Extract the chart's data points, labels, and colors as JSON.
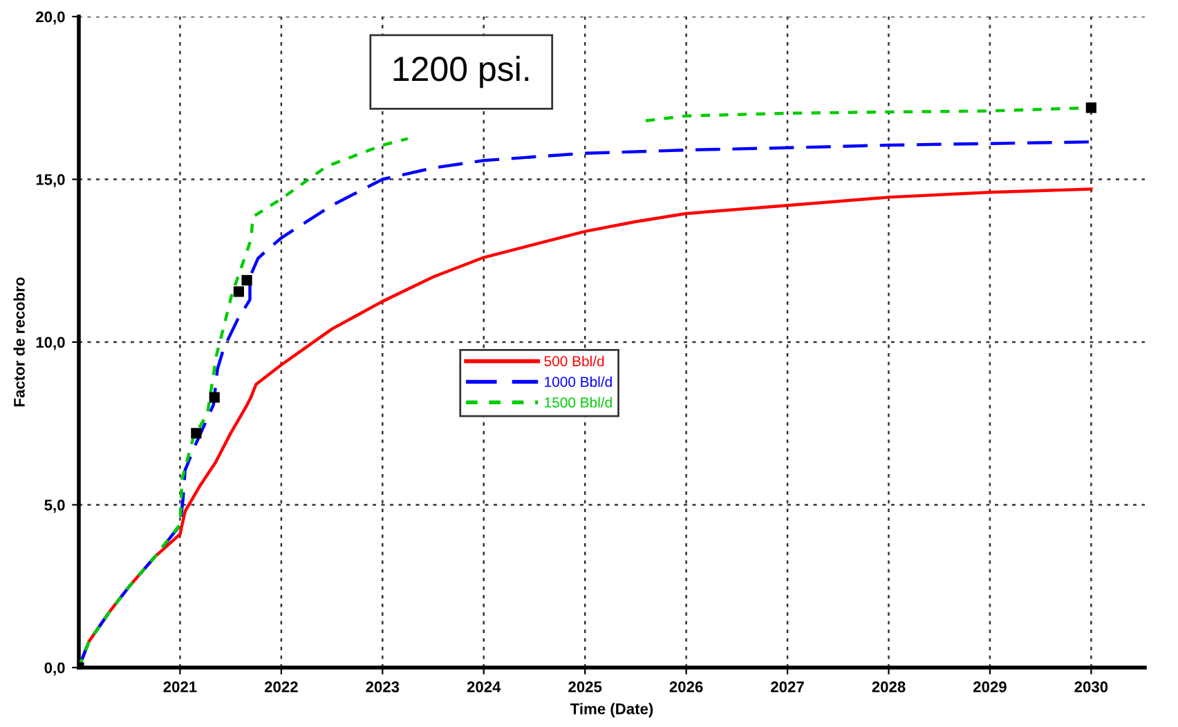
{
  "chart_data": {
    "type": "line",
    "xlabel": "Time (Date)",
    "ylabel": "Factor de recobro",
    "annotations": [
      "1200 psi."
    ],
    "xlim": [
      2020.0,
      2030.53
    ],
    "xticks": [
      2021,
      2022,
      2023,
      2024,
      2025,
      2026,
      2027,
      2028,
      2029,
      2030
    ],
    "ylim": [
      0,
      20
    ],
    "yticks": [
      {
        "value": 0,
        "label": "0,0"
      },
      {
        "value": 5,
        "label": "5,0"
      },
      {
        "value": 10,
        "label": "10,0"
      },
      {
        "value": 15,
        "label": "15,0"
      },
      {
        "value": 20,
        "label": "20,0"
      }
    ],
    "grid": true,
    "legend": "center",
    "marker": "none",
    "series": [
      {
        "name": "500 Bbl/d",
        "color": "#ff0000",
        "line_style": "solid",
        "x": [
          2020.0,
          2020.1,
          2020.3,
          2020.5,
          2020.75,
          2021.0,
          2021.05,
          2021.2,
          2021.35,
          2021.5,
          2021.65,
          2021.7,
          2021.75,
          2022.0,
          2022.5,
          2023.0,
          2023.5,
          2024.0,
          2024.5,
          2025.0,
          2025.5,
          2026.0,
          2027.0,
          2028.0,
          2029.0,
          2030.0
        ],
        "values": [
          0,
          0.8,
          1.7,
          2.5,
          3.4,
          4.1,
          4.8,
          5.6,
          6.3,
          7.2,
          8.0,
          8.3,
          8.7,
          9.3,
          10.4,
          11.25,
          12.0,
          12.6,
          13.0,
          13.4,
          13.7,
          13.95,
          14.2,
          14.45,
          14.6,
          14.7
        ]
      },
      {
        "name": "1000 Bbl/d",
        "color": "#0000ff",
        "line_style": "dashed",
        "x": [
          2020.0,
          2020.1,
          2020.3,
          2020.5,
          2020.75,
          2021.0,
          2021.03,
          2021.05,
          2021.16,
          2021.33,
          2021.37,
          2021.43,
          2021.57,
          2021.69,
          2021.69,
          2021.77,
          2021.85,
          2022.0,
          2022.5,
          2023.0,
          2023.5,
          2024.0,
          2025.0,
          2026.0,
          2027.0,
          2028.0,
          2029.0,
          2030.0
        ],
        "values": [
          0,
          0.8,
          1.7,
          2.5,
          3.4,
          4.37,
          5.2,
          6.07,
          6.9,
          8.07,
          9.17,
          9.8,
          10.7,
          11.3,
          12.0,
          12.57,
          12.8,
          13.2,
          14.2,
          15.0,
          15.35,
          15.58,
          15.8,
          15.9,
          15.97,
          16.05,
          16.1,
          16.15
        ]
      },
      {
        "name": "1500 Bbl/d",
        "color": "#00cc00",
        "line_style": "dotted",
        "x": [
          2020.0,
          2020.1,
          2020.3,
          2020.5,
          2020.75,
          2021.0,
          2021.02,
          2021.13,
          2021.27,
          2021.36,
          2021.43,
          2021.51,
          2021.67,
          2021.7,
          2021.72,
          2022.0,
          2022.45,
          2023.0,
          2023.25,
          2023.5,
          2025.0,
          2025.6,
          2026.0,
          2027.0,
          2028.0,
          2029.0,
          2030.0
        ],
        "values": [
          0,
          0.8,
          1.7,
          2.5,
          3.4,
          4.4,
          5.8,
          7.05,
          7.8,
          9.6,
          10.45,
          11.45,
          12.87,
          13.15,
          13.85,
          14.4,
          15.4,
          16.05,
          16.25,
          null,
          null,
          16.8,
          16.95,
          17.03,
          17.07,
          17.1,
          17.2
        ]
      },
      {
        "type": "scatter",
        "color": "#000000",
        "marker": "square",
        "x": [
          2020.0,
          2021.16,
          2021.34,
          2021.58,
          2021.66,
          2030.0
        ],
        "values": [
          0,
          7.2,
          8.3,
          11.55,
          11.9,
          17.2
        ]
      }
    ]
  }
}
